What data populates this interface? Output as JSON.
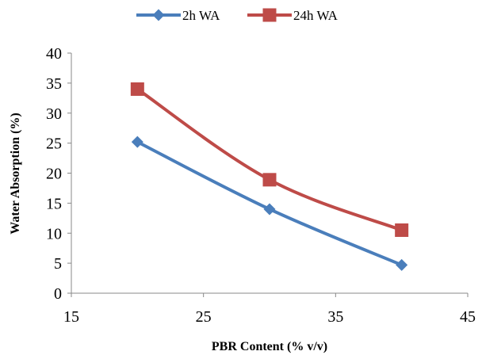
{
  "chart_data": {
    "type": "line",
    "title": "",
    "xlabel": "PBR Content (% v/v)",
    "ylabel": "Water Absorption (%)",
    "xlim": [
      15,
      45
    ],
    "ylim": [
      0,
      40
    ],
    "xticks": [
      15,
      25,
      35,
      45
    ],
    "yticks": [
      0,
      5,
      10,
      15,
      20,
      25,
      30,
      35,
      40
    ],
    "grid": false,
    "legend": "top-center",
    "series": [
      {
        "name": "2h WA",
        "color": "#4a7ebb",
        "marker": "diamond",
        "x": [
          20,
          30,
          40
        ],
        "y": [
          25.2,
          14.0,
          4.7
        ]
      },
      {
        "name": "24h WA",
        "color": "#be4b48",
        "marker": "square",
        "x": [
          20,
          30,
          40
        ],
        "y": [
          34.0,
          18.9,
          10.5
        ]
      }
    ]
  }
}
